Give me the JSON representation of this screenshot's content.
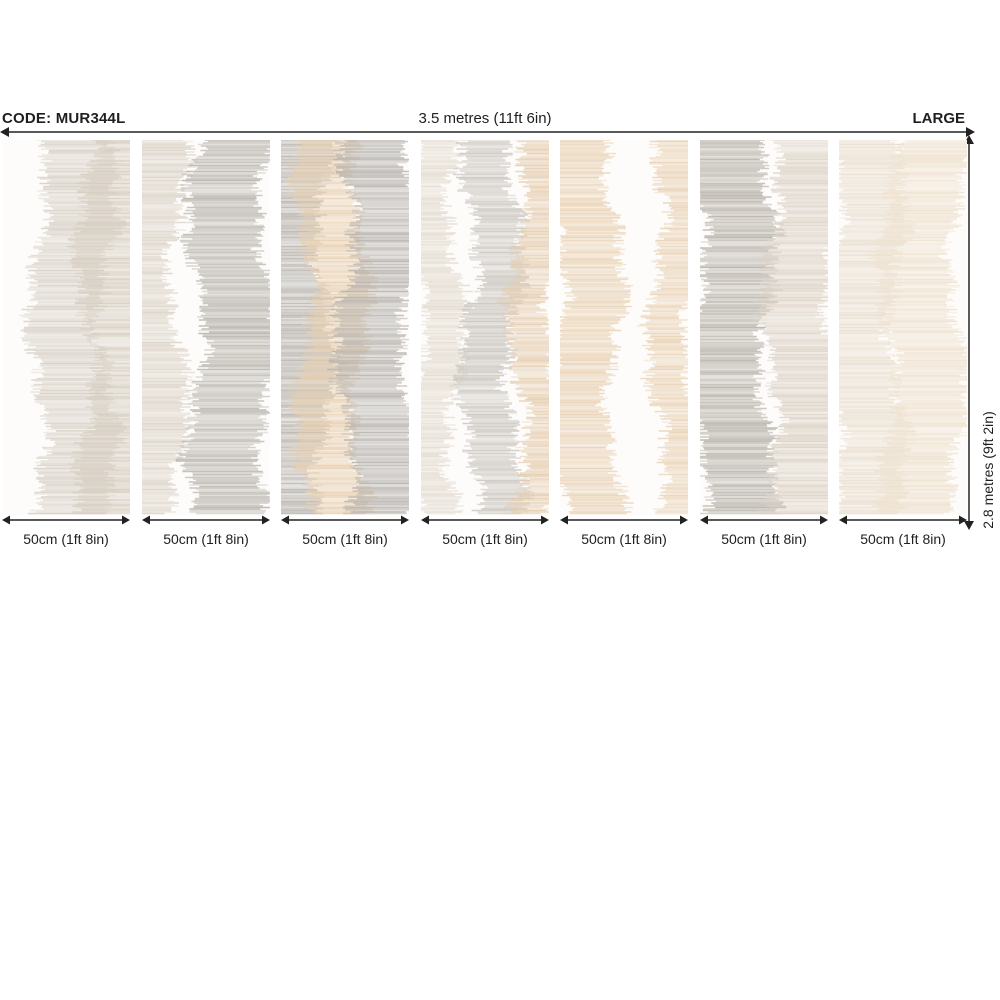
{
  "header": {
    "code": "CODE: MUR344L",
    "width_label": "3.5 metres (11ft 6in)",
    "size": "LARGE"
  },
  "height_label": "2.8 metres (9ft 2in)",
  "panels": [
    {
      "label": "50cm (1ft 8in)",
      "bands": [
        {
          "c": "#d8d0c6",
          "a": 0.55,
          "w": 0.45
        },
        {
          "c": "#d6cdc0",
          "a": 0.9,
          "w": 0.4
        }
      ]
    },
    {
      "label": "50cm (1ft 8in)",
      "bands": [
        {
          "c": "#dcd3c8",
          "a": 0.05,
          "w": 0.35
        },
        {
          "c": "#b9b4ad",
          "a": 0.7,
          "w": 0.45
        }
      ]
    },
    {
      "label": "50cm (1ft 8in)",
      "bands": [
        {
          "c": "#b9b5b0",
          "a": 0.1,
          "w": 0.4
        },
        {
          "c": "#e8cfb0",
          "a": 0.4,
          "w": 0.35
        },
        {
          "c": "#b6b2ad",
          "a": 0.75,
          "w": 0.4
        }
      ]
    },
    {
      "label": "50cm (1ft 8in)",
      "bands": [
        {
          "c": "#e4dbd0",
          "a": 0.12,
          "w": 0.2
        },
        {
          "c": "#c9c4be",
          "a": 0.55,
          "w": 0.25
        },
        {
          "c": "#e6cdb0",
          "a": 0.9,
          "w": 0.2
        }
      ]
    },
    {
      "label": "50cm (1ft 8in)",
      "bands": [
        {
          "c": "#e9d1b3",
          "a": 0.2,
          "w": 0.35
        },
        {
          "c": "#ead2b5",
          "a": 0.9,
          "w": 0.2
        }
      ]
    },
    {
      "label": "50cm (1ft 8in)",
      "bands": [
        {
          "c": "#b7b1a9",
          "a": 0.25,
          "w": 0.45
        },
        {
          "c": "#ddd3c7",
          "a": 0.8,
          "w": 0.4
        }
      ]
    },
    {
      "label": "50cm (1ft 8in)",
      "bands": [
        {
          "c": "#eadfd0",
          "a": 0.2,
          "w": 0.4
        },
        {
          "c": "#efe2cf",
          "a": 0.65,
          "w": 0.45
        }
      ]
    }
  ]
}
